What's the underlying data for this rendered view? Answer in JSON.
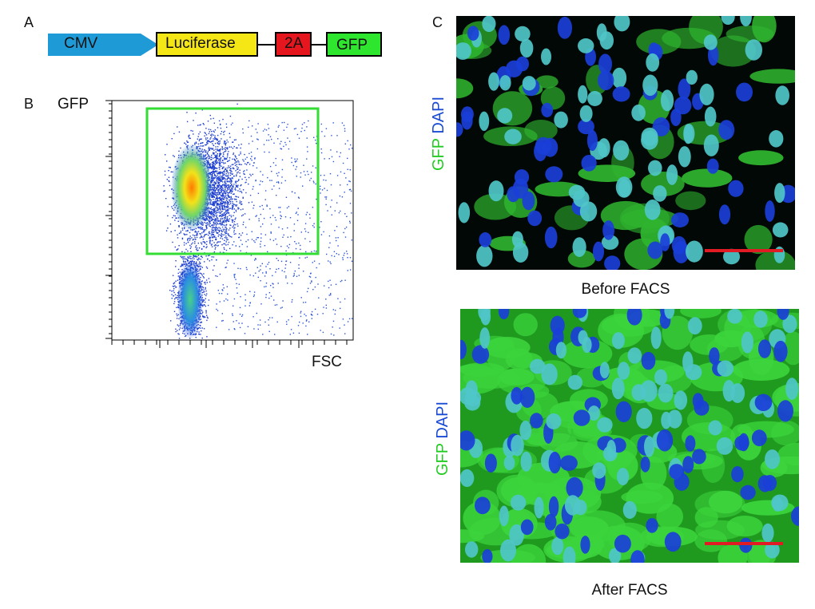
{
  "panel_labels": {
    "a": "A",
    "b": "B",
    "c": "C"
  },
  "construct": {
    "elements": [
      {
        "label": "CMV",
        "color": "#1e9ad6"
      },
      {
        "label": "Luciferase",
        "color": "#f5e616"
      },
      {
        "label": "2A",
        "color": "#e5161e"
      },
      {
        "label": "GFP",
        "color": "#2ee62e"
      }
    ]
  },
  "flow": {
    "y_label": "GFP",
    "x_label": "FSC",
    "gate_color": "#33dd33"
  },
  "microscopy": {
    "before": {
      "caption": "Before FACS",
      "stain_gfp": "GFP",
      "stain_dapi": "DAPI"
    },
    "after": {
      "caption": "After FACS",
      "stain_gfp": "GFP",
      "stain_dapi": "DAPI"
    },
    "gfp_color": "#22cc22",
    "dapi_color": "#1a4bd6",
    "scalebar_color": "#e01b24"
  }
}
